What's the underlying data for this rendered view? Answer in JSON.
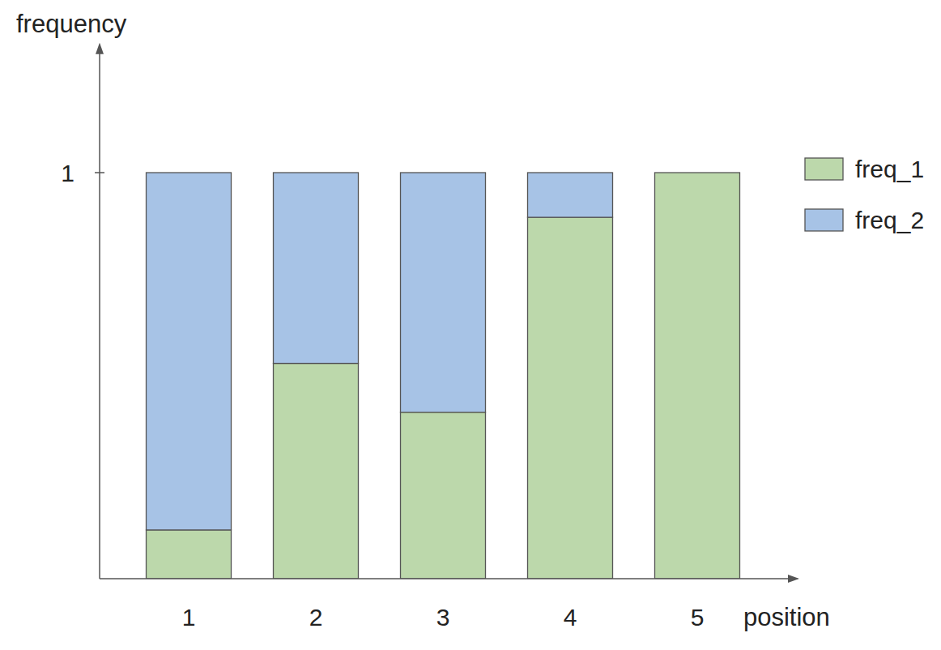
{
  "chart_data": {
    "type": "bar",
    "stacked": true,
    "x_label": "position",
    "y_label": "frequency",
    "categories": [
      "1",
      "2",
      "3",
      "4",
      "5"
    ],
    "series": [
      {
        "name": "freq_1",
        "color": "#bcd8ab",
        "values": [
          0.12,
          0.53,
          0.41,
          0.89,
          1.0
        ]
      },
      {
        "name": "freq_2",
        "color": "#a7c3e6",
        "values": [
          0.88,
          0.47,
          0.59,
          0.11,
          0
        ]
      }
    ],
    "ylim": [
      0,
      1.3
    ],
    "yticks": [
      1
    ],
    "grid": false,
    "legend": "right"
  }
}
